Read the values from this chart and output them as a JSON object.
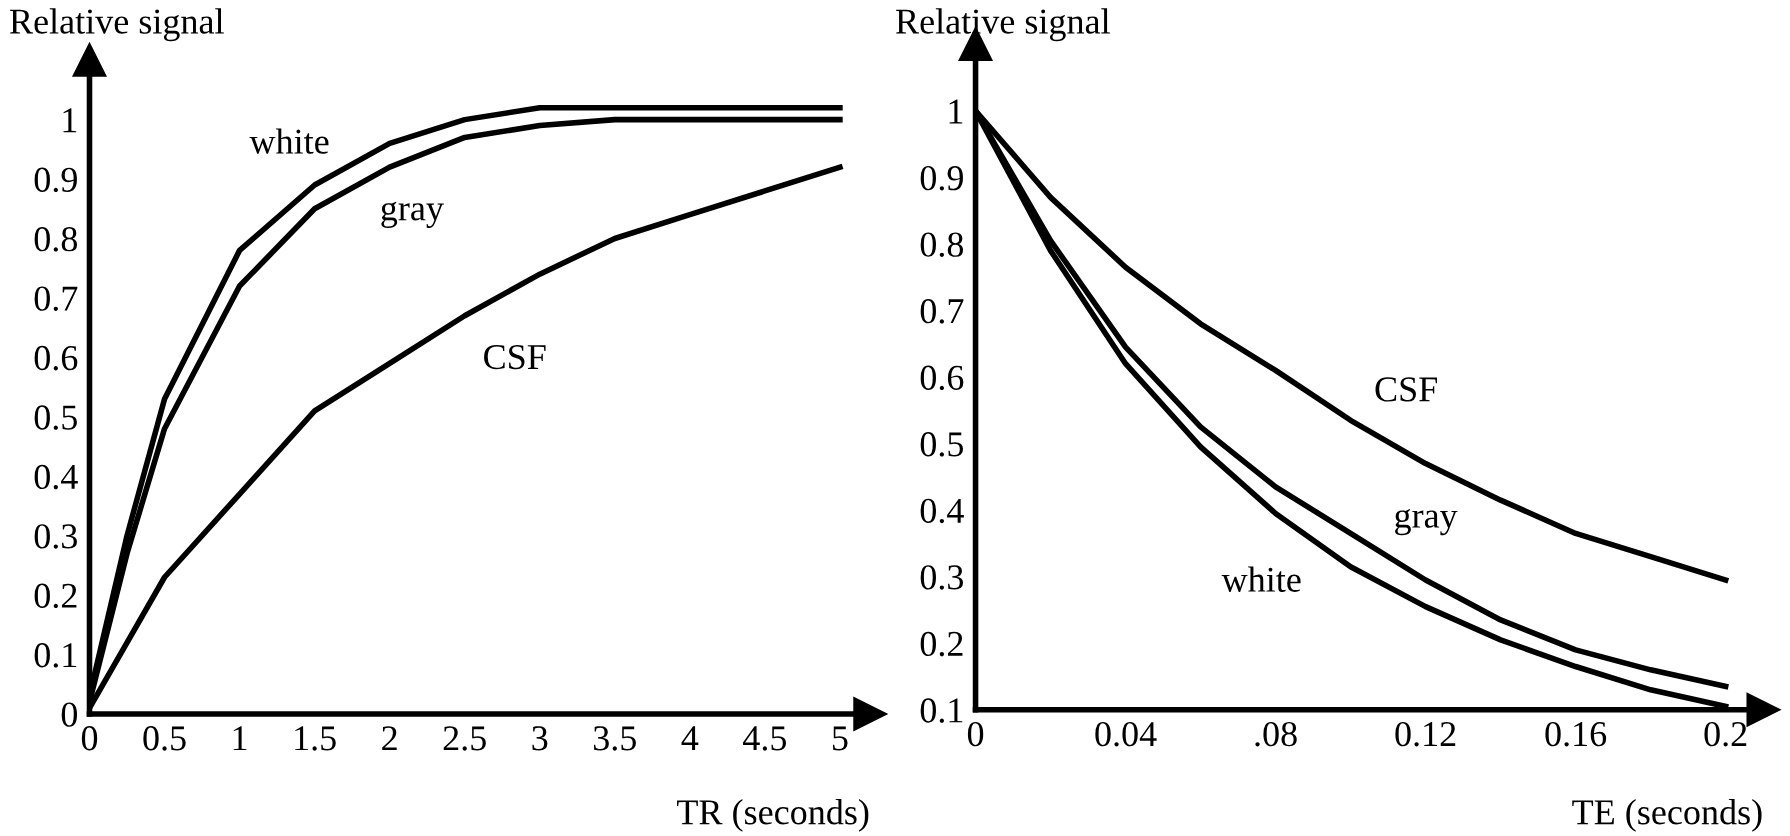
{
  "chart_data": [
    {
      "type": "line",
      "ylabel": "Relative signal",
      "xlabel": "TR (seconds)",
      "xlim": [
        0,
        5.2
      ],
      "ylim": [
        0,
        1.1
      ],
      "xticks": [
        0,
        0.5,
        1,
        1.5,
        2,
        2.5,
        3,
        3.5,
        4,
        4.5,
        5
      ],
      "yticks": [
        0,
        0.1,
        0.2,
        0.3,
        0.4,
        0.5,
        0.6,
        0.7,
        0.8,
        0.9,
        1
      ],
      "x": [
        0,
        0.25,
        0.5,
        1,
        1.5,
        2,
        2.5,
        3,
        3.5,
        4,
        4.5,
        5
      ],
      "grid": false,
      "legend": false,
      "marker": "none",
      "line_style": "solid",
      "series": [
        {
          "name": "white",
          "color": "#000000",
          "values": [
            0.03,
            0.3,
            0.53,
            0.78,
            0.89,
            0.96,
            1.0,
            1.02,
            1.02,
            1.02,
            1.02,
            1.02
          ]
        },
        {
          "name": "gray",
          "color": "#000000",
          "values": [
            0.02,
            0.27,
            0.48,
            0.72,
            0.85,
            0.92,
            0.97,
            0.99,
            1.0,
            1.0,
            1.0,
            1.0
          ]
        },
        {
          "name": "CSF",
          "color": "#000000",
          "values": [
            0.01,
            0.12,
            0.23,
            0.37,
            0.51,
            0.59,
            0.67,
            0.74,
            0.8,
            0.84,
            0.88,
            0.92
          ]
        }
      ]
    },
    {
      "type": "line",
      "ylabel": "Relative signal",
      "xlabel": "TE (seconds)",
      "xlim": [
        0,
        0.21
      ],
      "ylim": [
        0.1,
        1.1
      ],
      "xticks": [
        0,
        0.04,
        {
          "value": 0.08,
          "label": ".08"
        },
        0.12,
        0.16,
        0.2
      ],
      "yticks": [
        0.1,
        0.2,
        0.3,
        0.4,
        0.5,
        0.6,
        0.7,
        0.8,
        0.9,
        1
      ],
      "x": [
        0,
        0.02,
        0.04,
        0.06,
        0.08,
        0.1,
        0.12,
        0.14,
        0.16,
        0.18,
        0.2
      ],
      "grid": false,
      "legend": false,
      "marker": "none",
      "line_style": "solid",
      "series": [
        {
          "name": "CSF",
          "color": "#000000",
          "values": [
            1.0,
            0.87,
            0.765,
            0.68,
            0.61,
            0.535,
            0.47,
            0.415,
            0.365,
            0.33,
            0.295
          ]
        },
        {
          "name": "gray",
          "color": "#000000",
          "values": [
            1.0,
            0.805,
            0.645,
            0.525,
            0.435,
            0.365,
            0.295,
            0.235,
            0.19,
            0.16,
            0.135
          ]
        },
        {
          "name": "white",
          "color": "#000000",
          "values": [
            1.0,
            0.79,
            0.62,
            0.495,
            0.395,
            0.315,
            0.255,
            0.205,
            0.165,
            0.13,
            0.105
          ]
        }
      ]
    }
  ]
}
